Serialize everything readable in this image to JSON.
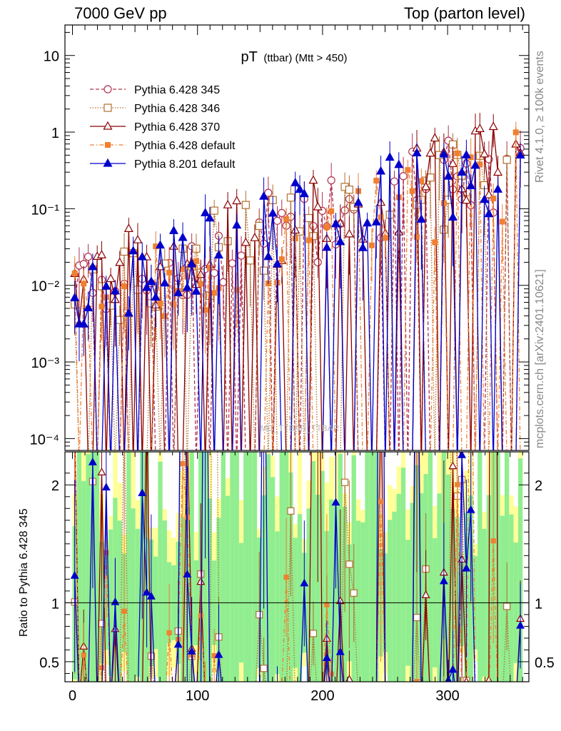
{
  "header": {
    "energy_label": "7000 GeV pp",
    "process_label": "Top (parton level)"
  },
  "side_text": {
    "rivet": "Rivet 4.1.0, ≥ 100k events",
    "mcplots": "mcplots.cern.ch [arXiv:2401.10621]"
  },
  "chart_data": [
    {
      "panel": "main",
      "type": "line",
      "title_main": "pT",
      "title_sub": "(ttbar) (Mtt > 450)",
      "watermark": "MC_TTBAR_TTBAR",
      "yscale": "log",
      "ylim": [
        7e-05,
        25
      ],
      "xlim": [
        -6,
        365
      ],
      "ytick_labels": [
        {
          "value": 10,
          "label": "10"
        },
        {
          "value": 1,
          "label": "1"
        },
        {
          "value": 0.1,
          "label": "10⁻¹"
        },
        {
          "value": 0.01,
          "label": "10⁻²"
        },
        {
          "value": 0.001,
          "label": "10⁻³"
        },
        {
          "value": 0.0001,
          "label": "10⁻⁴"
        }
      ],
      "legend_position": "top-left",
      "series": [
        {
          "name": "Pythia 6.428 345",
          "color": "#b03050",
          "marker": "circle-open",
          "linestyle": "dashed",
          "seed": 11,
          "nonzero_frac": 0.55,
          "amp_lo": 0.01,
          "amp_hi": 0.4
        },
        {
          "name": "Pythia 6.428 346",
          "color": "#b07030",
          "marker": "square-open",
          "linestyle": "dotted",
          "seed": 23,
          "nonzero_frac": 0.5,
          "amp_lo": 0.008,
          "amp_hi": 0.35
        },
        {
          "name": "Pythia 6.428 370",
          "color": "#8b0000",
          "marker": "triangle-open",
          "linestyle": "solid",
          "seed": 37,
          "nonzero_frac": 0.55,
          "amp_lo": 0.01,
          "amp_hi": 0.5
        },
        {
          "name": "Pythia 6.428 default",
          "color": "#f08030",
          "marker": "square-filled",
          "linestyle": "dashdot",
          "seed": 51,
          "nonzero_frac": 0.5,
          "amp_lo": 0.005,
          "amp_hi": 0.3
        },
        {
          "name": "Pythia 8.201 default",
          "color": "#0000cc",
          "marker": "triangle-filled",
          "linestyle": "solid",
          "seed": 67,
          "nonzero_frac": 0.55,
          "amp_lo": 0.01,
          "amp_hi": 0.4
        }
      ]
    },
    {
      "panel": "ratio",
      "type": "line",
      "ylabel": "Ratio to Pythia 6.428 345",
      "ylim": [
        0.33,
        2.28
      ],
      "yticks": [
        0.5,
        1,
        2
      ],
      "ytick_labels": [
        "0.5",
        "1",
        "2"
      ],
      "reference_line": 1,
      "xlim": [
        -6,
        365
      ],
      "xticks": [
        0,
        100,
        200,
        300
      ],
      "xtick_labels": [
        "0",
        "100",
        "200",
        "300"
      ],
      "band_colors": {
        "inner": "#90ee90",
        "outer": "#ffff99"
      }
    }
  ]
}
